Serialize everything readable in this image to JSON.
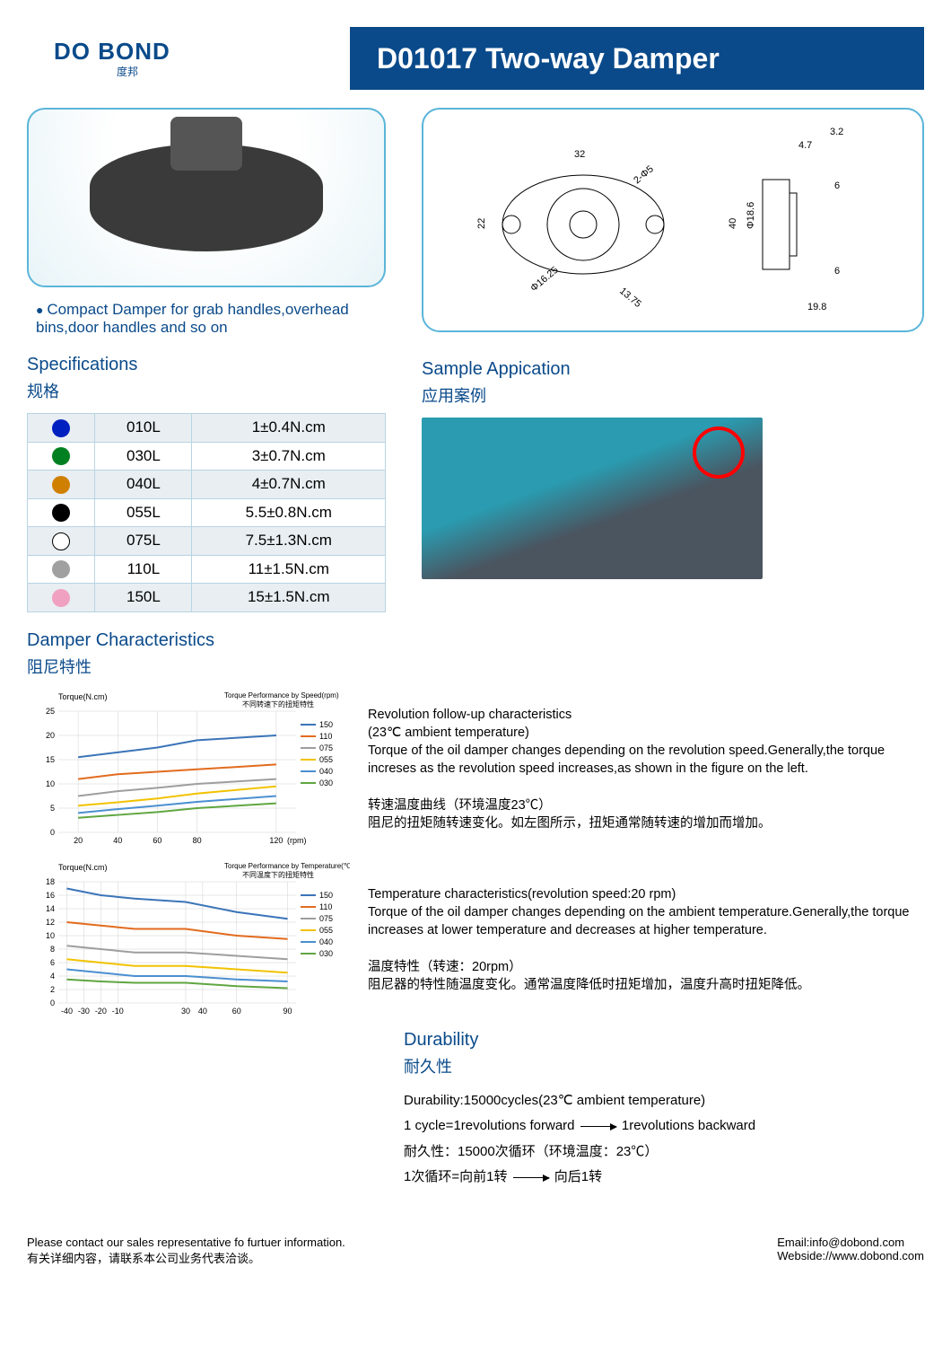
{
  "header": {
    "logo": "DO BOND",
    "logo_sub": "度邦",
    "title": "D01017 Two-way Damper"
  },
  "description": "Compact Damper for  grab handles,overhead bins,door handles and so on",
  "specifications": {
    "title_en": "Specifications",
    "title_cn": "规格",
    "rows": [
      {
        "color": "#0020c0",
        "model": "010L",
        "torque": "1±0.4N.cm"
      },
      {
        "color": "#008020",
        "model": "030L",
        "torque": "3±0.7N.cm"
      },
      {
        "color": "#d08000",
        "model": "040L",
        "torque": "4±0.7N.cm"
      },
      {
        "color": "#000000",
        "model": "055L",
        "torque": "5.5±0.8N.cm"
      },
      {
        "color": "hollow",
        "model": "075L",
        "torque": "7.5±1.3N.cm"
      },
      {
        "color": "#a0a0a0",
        "model": "110L",
        "torque": "11±1.5N.cm"
      },
      {
        "color": "#f0a0c0",
        "model": "150L",
        "torque": "15±1.5N.cm"
      }
    ]
  },
  "sample_app": {
    "title_en": "Sample Appication",
    "title_cn": "应用案例"
  },
  "damper_char": {
    "title_en": "Damper Characteristics",
    "title_cn": "阻尼特性"
  },
  "chart1": {
    "type": "line",
    "y_label": "Torque(N.cm)",
    "title": "Torque Performance by Speed(rpm)",
    "title_cn": "不同转速下的扭矩特性",
    "x_label": "(rpm)",
    "x_ticks": [
      20,
      40,
      60,
      80,
      120
    ],
    "y_ticks": [
      0,
      5,
      10,
      15,
      20,
      25
    ],
    "ylim": [
      0,
      25
    ],
    "xlim": [
      10,
      130
    ],
    "grid_color": "#d0d0d0",
    "line_width": 2,
    "series": [
      {
        "label": "150",
        "color": "#3b74b8",
        "values": [
          [
            20,
            15.5
          ],
          [
            40,
            16.5
          ],
          [
            60,
            17.5
          ],
          [
            80,
            19
          ],
          [
            120,
            20
          ]
        ]
      },
      {
        "label": "110",
        "color": "#e26b1e",
        "values": [
          [
            20,
            11
          ],
          [
            40,
            12
          ],
          [
            60,
            12.5
          ],
          [
            80,
            13
          ],
          [
            120,
            14
          ]
        ]
      },
      {
        "label": "075",
        "color": "#9e9e9e",
        "values": [
          [
            20,
            7.5
          ],
          [
            40,
            8.5
          ],
          [
            60,
            9.2
          ],
          [
            80,
            10
          ],
          [
            120,
            11
          ]
        ]
      },
      {
        "label": "055",
        "color": "#f2c200",
        "values": [
          [
            20,
            5.5
          ],
          [
            40,
            6.2
          ],
          [
            60,
            7
          ],
          [
            80,
            8
          ],
          [
            120,
            9.5
          ]
        ]
      },
      {
        "label": "040",
        "color": "#4a8fd0",
        "values": [
          [
            20,
            4
          ],
          [
            40,
            4.8
          ],
          [
            60,
            5.5
          ],
          [
            80,
            6.3
          ],
          [
            120,
            7.5
          ]
        ]
      },
      {
        "label": "030",
        "color": "#5fa641",
        "values": [
          [
            20,
            3
          ],
          [
            40,
            3.6
          ],
          [
            60,
            4.2
          ],
          [
            80,
            5
          ],
          [
            120,
            6
          ]
        ]
      }
    ]
  },
  "chart2": {
    "type": "line",
    "y_label": "Torque(N.cm)",
    "title": "Torque Performance by Temperature(℃)",
    "title_cn": "不同温度下的扭矩特性",
    "x_ticks": [
      -40,
      -30,
      -20,
      -10,
      30,
      40,
      60,
      90
    ],
    "y_ticks": [
      0,
      2,
      4,
      6,
      8,
      10,
      12,
      14,
      16,
      18
    ],
    "ylim": [
      0,
      18
    ],
    "xlim": [
      -45,
      95
    ],
    "grid_color": "#d0d0d0",
    "line_width": 2,
    "series": [
      {
        "label": "150",
        "color": "#3b74b8",
        "values": [
          [
            -40,
            17
          ],
          [
            -20,
            16
          ],
          [
            0,
            15.5
          ],
          [
            30,
            15
          ],
          [
            60,
            13.5
          ],
          [
            90,
            12.5
          ]
        ]
      },
      {
        "label": "110",
        "color": "#e26b1e",
        "values": [
          [
            -40,
            12
          ],
          [
            -20,
            11.5
          ],
          [
            0,
            11
          ],
          [
            30,
            11
          ],
          [
            60,
            10
          ],
          [
            90,
            9.5
          ]
        ]
      },
      {
        "label": "075",
        "color": "#9e9e9e",
        "values": [
          [
            -40,
            8.5
          ],
          [
            -20,
            8
          ],
          [
            0,
            7.5
          ],
          [
            30,
            7.5
          ],
          [
            60,
            7
          ],
          [
            90,
            6.5
          ]
        ]
      },
      {
        "label": "055",
        "color": "#f2c200",
        "values": [
          [
            -40,
            6.5
          ],
          [
            -20,
            6
          ],
          [
            0,
            5.5
          ],
          [
            30,
            5.5
          ],
          [
            60,
            5
          ],
          [
            90,
            4.5
          ]
        ]
      },
      {
        "label": "040",
        "color": "#4a8fd0",
        "values": [
          [
            -40,
            5
          ],
          [
            -20,
            4.5
          ],
          [
            0,
            4
          ],
          [
            30,
            4
          ],
          [
            60,
            3.5
          ],
          [
            90,
            3.2
          ]
        ]
      },
      {
        "label": "030",
        "color": "#5fa641",
        "values": [
          [
            -40,
            3.5
          ],
          [
            -20,
            3.2
          ],
          [
            0,
            3
          ],
          [
            30,
            3
          ],
          [
            60,
            2.5
          ],
          [
            90,
            2.2
          ]
        ]
      }
    ]
  },
  "desc1": {
    "h_en": "Revolution follow-up characteristics",
    "h_en2": "(23℃ ambient temperature)",
    "p_en": "Torque of the oil damper changes depending on the revolution speed.Generally,the torque increses as the revolution speed increases,as shown in the figure on the left.",
    "h_cn": "转速温度曲线（环境温度23℃）",
    "p_cn": "阻尼的扭矩随转速变化。如左图所示，扭矩通常随转速的增加而增加。"
  },
  "desc2": {
    "h_en": "Temperature characteristics(revolution speed:20 rpm)",
    "p_en": "Torque of the oil damper changes depending on the ambient temperature.Generally,the torque increases at lower temperature and decreases at higher temperature.",
    "h_cn": "温度特性（转速：20rpm）",
    "p_cn": "阻尼器的特性随温度变化。通常温度降低时扭矩增加，温度升高时扭矩降低。"
  },
  "durability": {
    "title_en": "Durability",
    "title_cn": "耐久性",
    "l1": "Durability:15000cycles(23℃ ambient temperature)",
    "l2a": "1 cycle=1revolutions forward",
    "l2b": "1revolutions backward",
    "l3": "耐久性：15000次循环（环境温度：23℃）",
    "l4a": "1次循环=向前1转",
    "l4b": "向后1转"
  },
  "footer": {
    "left1": "Please contact our sales representative fo furtuer information.",
    "left2": "有关详细内容，请联系本公司业务代表洽谈。",
    "right1": "Email:info@dobond.com",
    "right2": "Webside://www.dobond.com"
  },
  "dims": {
    "labels": [
      "32",
      "22",
      "Φ16.25",
      "13.75",
      "2-Φ5",
      "3.2",
      "4.7",
      "40",
      "Φ18.6",
      "6",
      "6",
      "19.8"
    ]
  }
}
